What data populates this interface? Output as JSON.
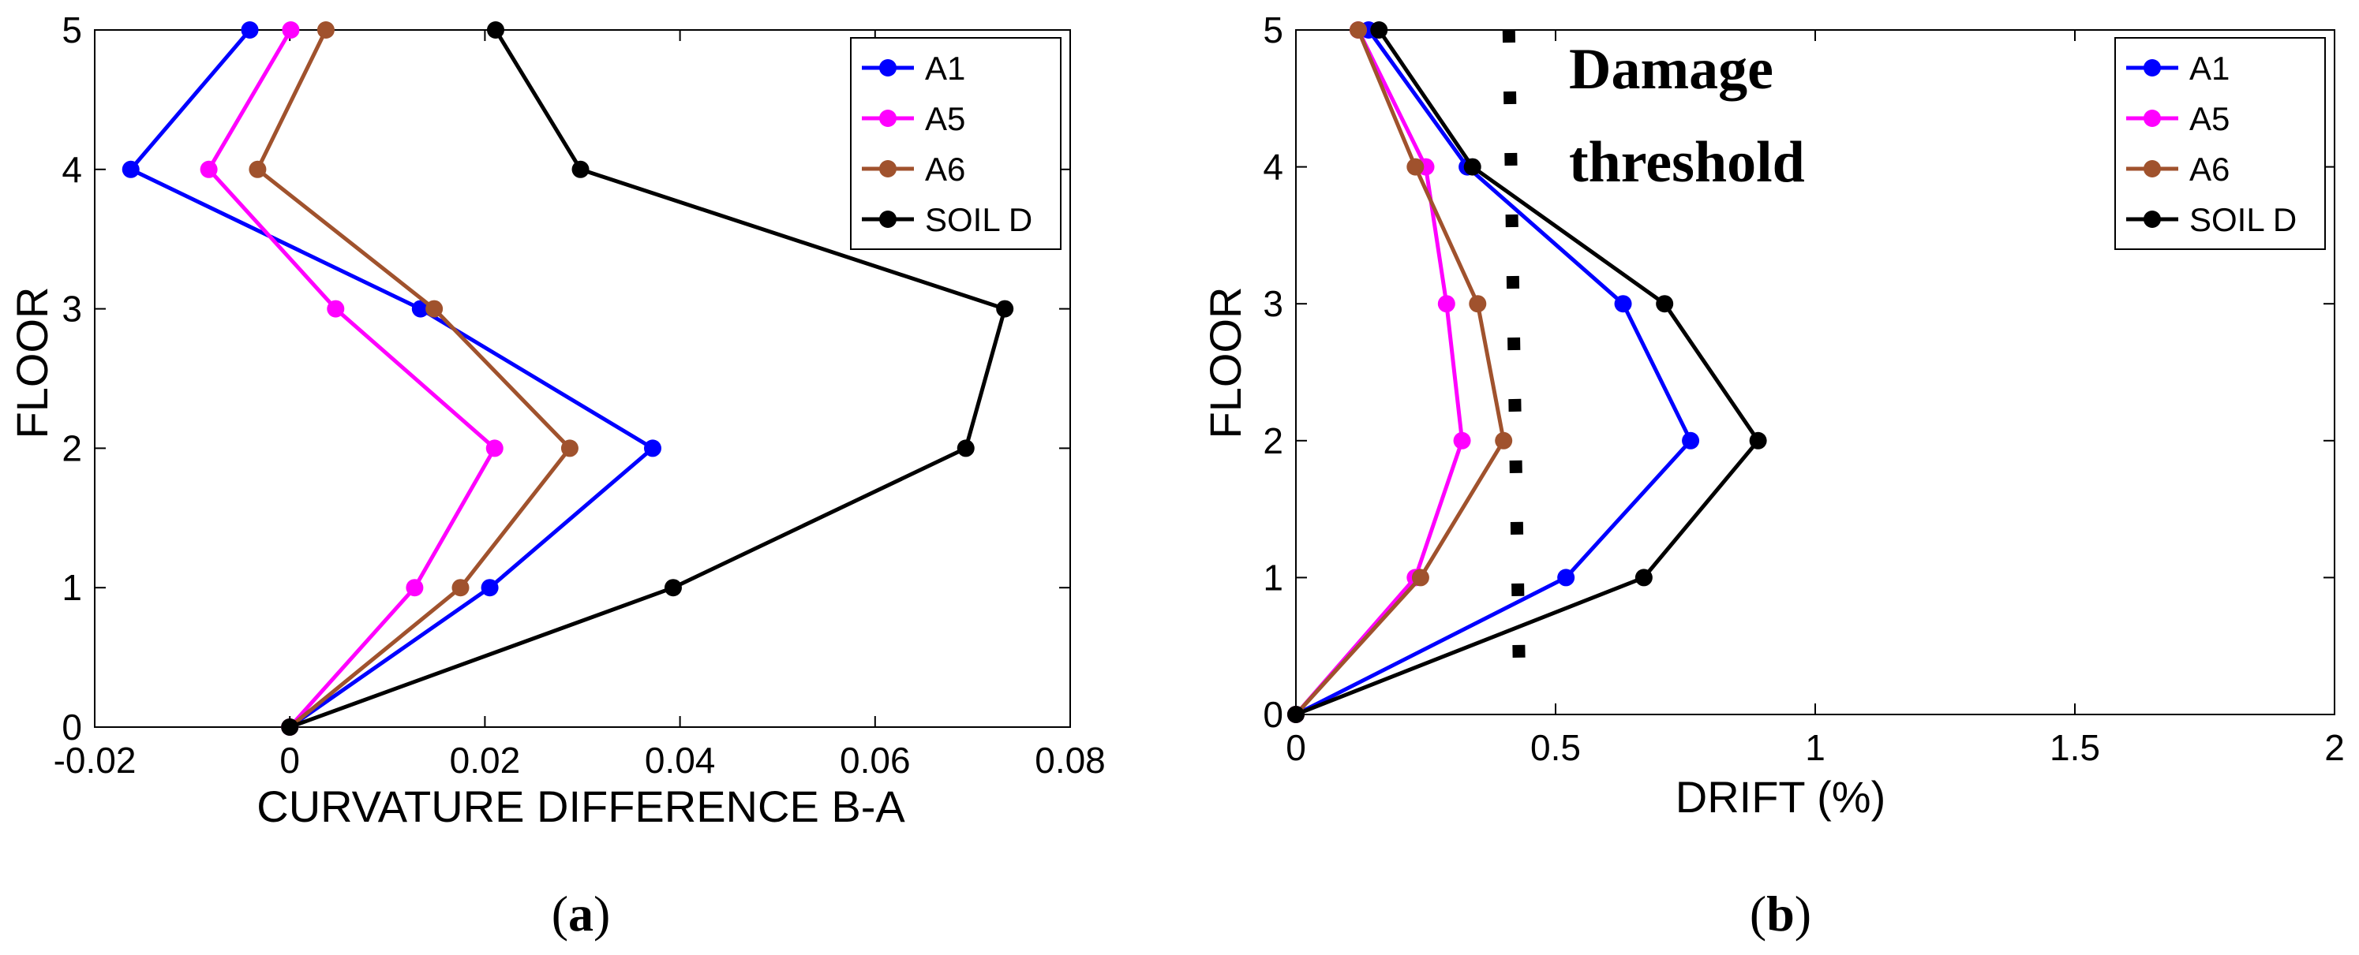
{
  "chart_data": [
    {
      "id": "a",
      "type": "line",
      "caption_open": "(",
      "caption_letter": "a",
      "caption_close": ")",
      "xlabel": "CURVATURE DIFFERENCE B-A",
      "ylabel": "FLOOR",
      "xlim": [
        -0.02,
        0.08
      ],
      "ylim": [
        0,
        5
      ],
      "xticks": [
        -0.02,
        0,
        0.02,
        0.04,
        0.06,
        0.08
      ],
      "xtick_labels": [
        "-0.02",
        "0",
        "0.02",
        "0.04",
        "0.06",
        "0.08"
      ],
      "yticks": [
        0,
        1,
        2,
        3,
        4,
        5
      ],
      "ytick_labels": [
        "0",
        "1",
        "2",
        "3",
        "4",
        "5"
      ],
      "legend_position": "top-right",
      "series": [
        {
          "name": "A1",
          "color": "#0000ff",
          "x": [
            0,
            0.0205,
            0.0372,
            0.0134,
            -0.0163,
            -0.0041
          ],
          "y": [
            0,
            1,
            2,
            3,
            4,
            5
          ]
        },
        {
          "name": "A5",
          "color": "#ff00ff",
          "x": [
            0,
            0.0128,
            0.021,
            0.0047,
            -0.0083,
            0.0001
          ],
          "y": [
            0,
            1,
            2,
            3,
            4,
            5
          ]
        },
        {
          "name": "A6",
          "color": "#a0522d",
          "x": [
            0,
            0.0175,
            0.0287,
            0.0148,
            -0.0033,
            0.0037
          ],
          "y": [
            0,
            1,
            2,
            3,
            4,
            5
          ]
        },
        {
          "name": "SOIL D",
          "color": "#000000",
          "x": [
            0,
            0.0393,
            0.0693,
            0.0733,
            0.0298,
            0.0211
          ],
          "y": [
            0,
            1,
            2,
            3,
            4,
            5
          ]
        }
      ]
    },
    {
      "id": "b",
      "type": "line",
      "caption_open": "(",
      "caption_letter": "b",
      "caption_close": ")",
      "xlabel": "DRIFT (%)",
      "ylabel": "FLOOR",
      "xlim": [
        0,
        2
      ],
      "ylim": [
        0,
        5
      ],
      "xticks": [
        0,
        0.5,
        1,
        1.5,
        2
      ],
      "xtick_labels": [
        "0",
        "0.5",
        "1",
        "1.5",
        "2"
      ],
      "yticks": [
        0,
        1,
        2,
        3,
        4,
        5
      ],
      "ytick_labels": [
        "0",
        "1",
        "2",
        "3",
        "4",
        "5"
      ],
      "legend_position": "top-right",
      "annotation": {
        "line1": "Damage",
        "line2": "threshold"
      },
      "threshold": {
        "x": [
          0.41,
          0.43
        ],
        "y": [
          5,
          0.3
        ],
        "style": "dotted"
      },
      "series": [
        {
          "name": "A1",
          "color": "#0000ff",
          "x": [
            0,
            0.52,
            0.76,
            0.63,
            0.33,
            0.14
          ],
          "y": [
            0,
            1,
            2,
            3,
            4,
            5
          ]
        },
        {
          "name": "A5",
          "color": "#ff00ff",
          "x": [
            0,
            0.23,
            0.32,
            0.29,
            0.25,
            0.12
          ],
          "y": [
            0,
            1,
            2,
            3,
            4,
            5
          ]
        },
        {
          "name": "A6",
          "color": "#a0522d",
          "x": [
            0,
            0.24,
            0.4,
            0.35,
            0.23,
            0.12
          ],
          "y": [
            0,
            1,
            2,
            3,
            4,
            5
          ]
        },
        {
          "name": "SOIL D",
          "color": "#000000",
          "x": [
            0,
            0.67,
            0.89,
            0.71,
            0.34,
            0.16
          ],
          "y": [
            0,
            1,
            2,
            3,
            4,
            5
          ]
        }
      ]
    }
  ]
}
